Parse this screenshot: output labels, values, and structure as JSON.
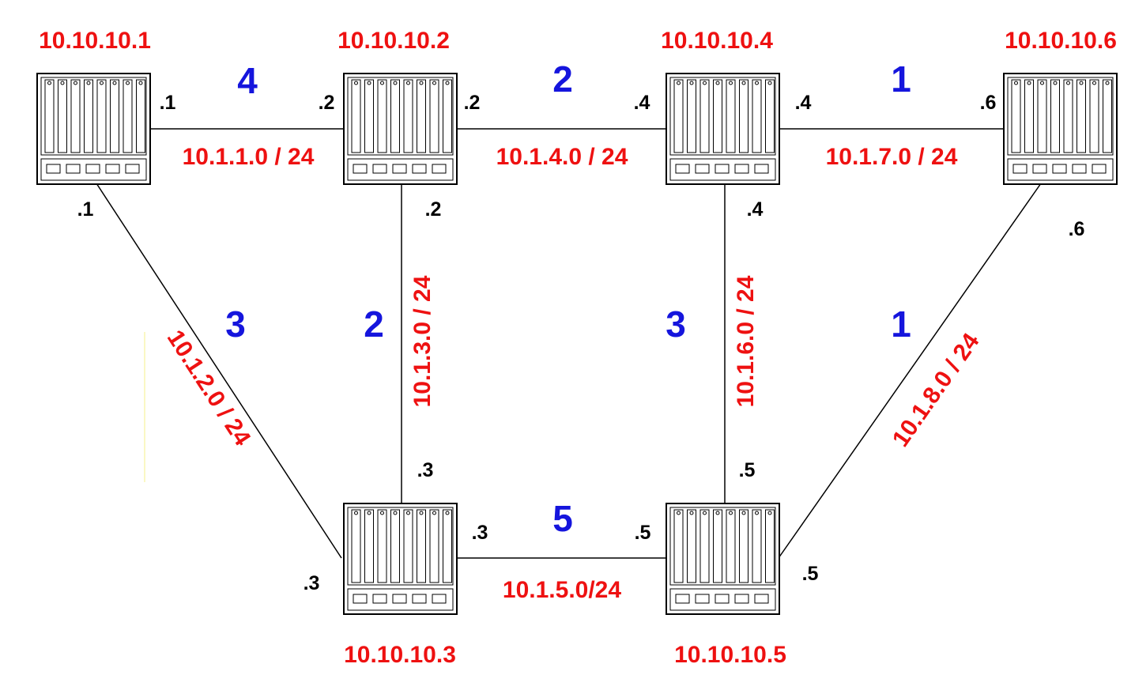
{
  "colors": {
    "router_label": "#ee1111",
    "subnet_label": "#ee1111",
    "cost_label": "#1515dd",
    "interface_label": "#000000",
    "link": "#000000"
  },
  "routers": [
    {
      "id": "r1",
      "name": "10.10.10.1"
    },
    {
      "id": "r2",
      "name": "10.10.10.2"
    },
    {
      "id": "r4",
      "name": "10.10.10.4"
    },
    {
      "id": "r6",
      "name": "10.10.10.6"
    },
    {
      "id": "r3",
      "name": "10.10.10.3"
    },
    {
      "id": "r5",
      "name": "10.10.10.5"
    }
  ],
  "links": [
    {
      "id": "l1",
      "subnet": "10.1.1.0 / 24",
      "cost": "4",
      "end_a": ".1",
      "end_b": ".2"
    },
    {
      "id": "l4",
      "subnet": "10.1.4.0 / 24",
      "cost": "2",
      "end_a": ".2",
      "end_b": ".4"
    },
    {
      "id": "l7",
      "subnet": "10.1.7.0 / 24",
      "cost": "1",
      "end_a": ".4",
      "end_b": ".6"
    },
    {
      "id": "l2",
      "subnet": "10.1.2.0 / 24",
      "cost": "3",
      "end_a": ".1",
      "end_b": ".3"
    },
    {
      "id": "l3",
      "subnet": "10.1.3.0 / 24",
      "cost": "2",
      "end_a": ".2",
      "end_b": ".3"
    },
    {
      "id": "l6",
      "subnet": "10.1.6.0 / 24",
      "cost": "3",
      "end_a": ".4",
      "end_b": ".5"
    },
    {
      "id": "l8",
      "subnet": "10.1.8.0 / 24",
      "cost": "1",
      "end_a": ".6",
      "end_b": ".5"
    },
    {
      "id": "l5",
      "subnet": "10.1.5.0/24",
      "cost": "5",
      "end_a": ".3",
      "end_b": ".5"
    }
  ]
}
